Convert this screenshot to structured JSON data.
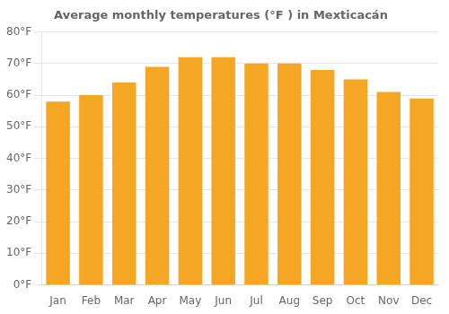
{
  "chart_data": {
    "type": "bar",
    "title": "Average monthly temperatures (°F ) in Mexticacán",
    "categories": [
      "Jan",
      "Feb",
      "Mar",
      "Apr",
      "May",
      "Jun",
      "Jul",
      "Aug",
      "Sep",
      "Oct",
      "Nov",
      "Dec"
    ],
    "values": [
      58,
      60,
      64,
      69,
      72,
      72,
      70,
      70,
      68,
      65,
      61,
      59
    ],
    "color": "#F5A623",
    "ylim": [
      0,
      80
    ],
    "yticks": [
      {
        "value": 0,
        "label": "0°F"
      },
      {
        "value": 10,
        "label": "10°F"
      },
      {
        "value": 20,
        "label": "20°F"
      },
      {
        "value": 30,
        "label": "30°F"
      },
      {
        "value": 40,
        "label": "40°F"
      },
      {
        "value": 50,
        "label": "50°F"
      },
      {
        "value": 60,
        "label": "60°F"
      },
      {
        "value": 70,
        "label": "70°F"
      },
      {
        "value": 80,
        "label": "80°F"
      }
    ],
    "grid": true
  }
}
